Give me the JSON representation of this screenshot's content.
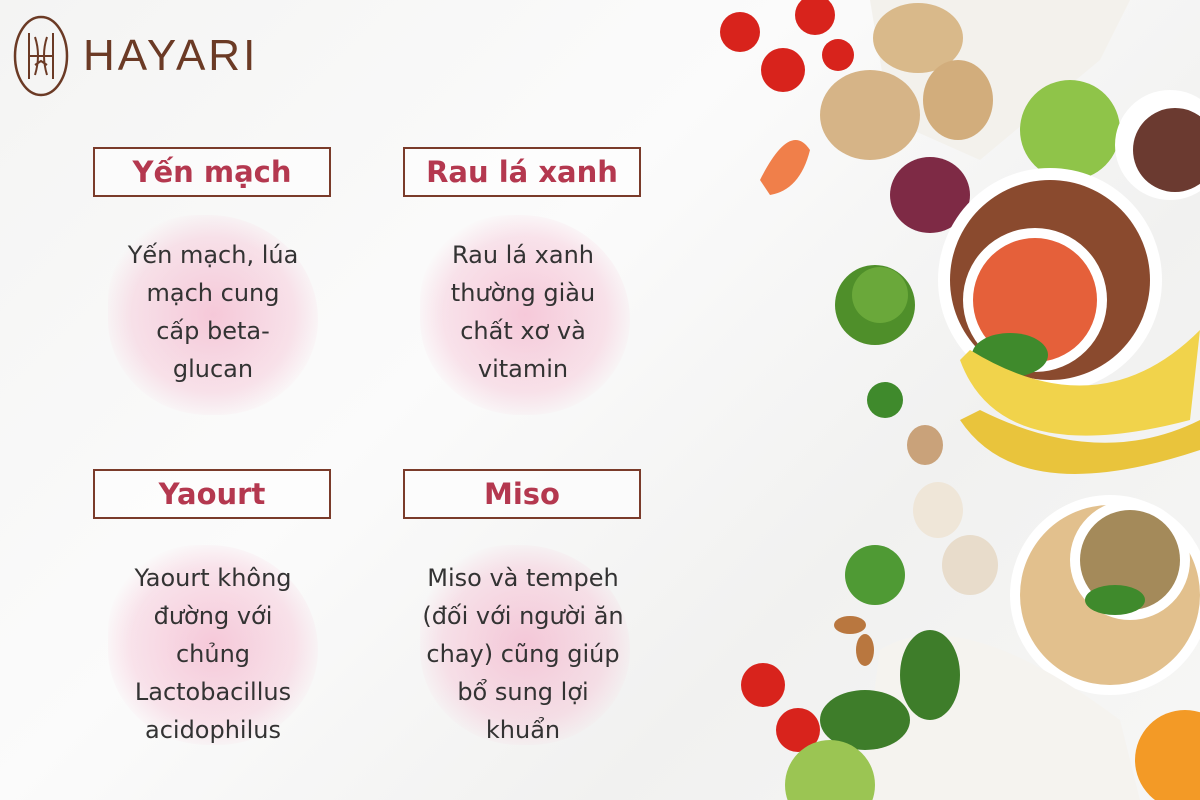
{
  "brand": {
    "name": "HAYARI",
    "color": "#6b3a25"
  },
  "accent_color": "#b4384f",
  "cards": [
    {
      "title": "Yến mạch",
      "lines": [
        "Yến mạch, lúa",
        "mạch cung",
        "cấp beta-",
        "glucan"
      ]
    },
    {
      "title": "Rau lá xanh",
      "lines": [
        "Rau lá xanh",
        "thường giàu",
        "chất xơ và",
        "vitamin"
      ]
    },
    {
      "title": "Yaourt",
      "lines": [
        "Yaourt không",
        "đường với",
        "chủng",
        "Lactobacillus",
        "acidophilus"
      ]
    },
    {
      "title": "Miso",
      "lines": [
        "Miso và tempeh",
        "(đối với người ăn",
        "chay) cũng giúp",
        "bổ sung lợi",
        "khuẩn"
      ]
    }
  ]
}
